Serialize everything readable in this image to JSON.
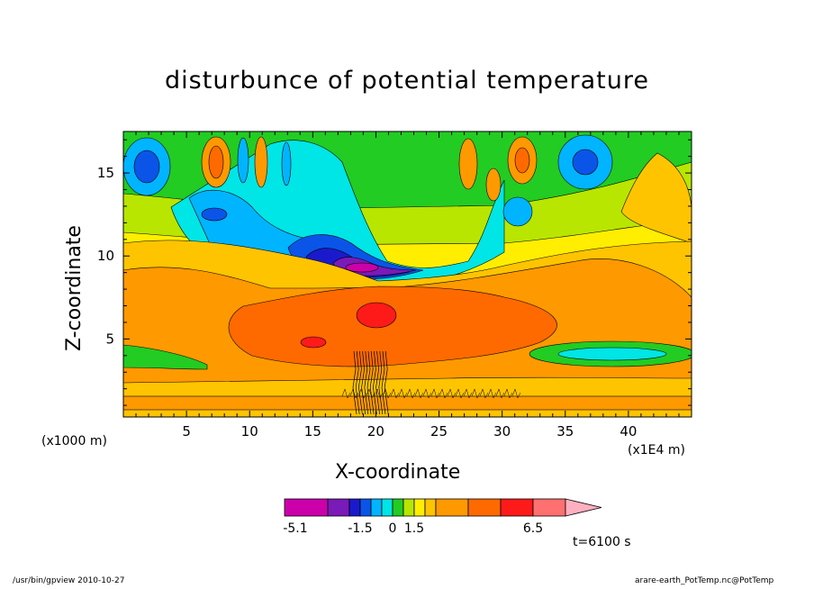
{
  "chart_data": {
    "type": "heatmap",
    "title": "disturbunce of potential temperature",
    "xlabel": "X-coordinate",
    "ylabel": "Z-coordinate",
    "x_unit_label": "(x1E4 m)",
    "y_unit_label": "(x1000 m)",
    "xlim": [
      0,
      45
    ],
    "ylim": [
      0.3,
      17.5
    ],
    "x_ticks": [
      "5",
      "10",
      "15",
      "20",
      "25",
      "30",
      "35",
      "40"
    ],
    "y_ticks": [
      "5",
      "10",
      "15"
    ],
    "colorbar": {
      "labels": [
        "-5.1",
        "-1.5",
        "0",
        "1.5",
        "6.5"
      ],
      "colors": [
        "#cc00aa",
        "#7a1ab8",
        "#1a1acc",
        "#0a55e8",
        "#00b4ff",
        "#00e5e5",
        "#22cc22",
        "#b8e600",
        "#ffee00",
        "#ffc400",
        "#ff9900",
        "#ff6a00",
        "#ff1a1a",
        "#ff7070",
        "#ffb0c0"
      ],
      "extend": "max"
    },
    "time_label": "t=6100 s"
  },
  "footer": {
    "left": "/usr/bin/gpview  2010-10-27",
    "right": "arare-earth_PotTemp.nc@PotTemp"
  }
}
